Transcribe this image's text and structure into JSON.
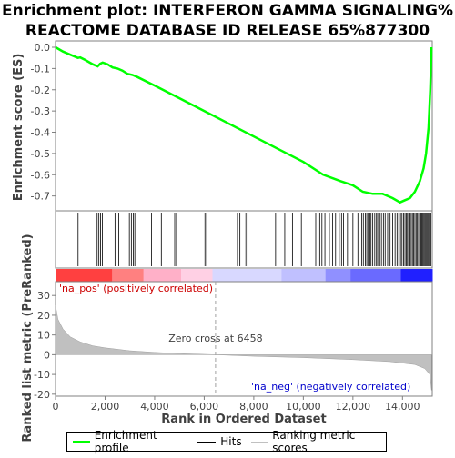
{
  "chart_data": {
    "type": "line",
    "title_line1": "Enrichment plot: INTERFERON GAMMA SIGNALING%",
    "title_line2": "REACTOME DATABASE ID RELEASE 65%877300",
    "es_panel": {
      "ylabel": "Enrichment score (ES)",
      "ylim": [
        -0.77,
        0.03
      ],
      "yticks": [
        "0.0",
        "-0.1",
        "-0.2",
        "-0.3",
        "-0.4",
        "-0.5",
        "-0.6",
        "-0.7"
      ],
      "ytick_values": [
        0.0,
        -0.1,
        -0.2,
        -0.3,
        -0.4,
        -0.5,
        -0.6,
        -0.7
      ],
      "line_color": "#00ff00",
      "points": [
        [
          0,
          0
        ],
        [
          300,
          -0.02
        ],
        [
          600,
          -0.035
        ],
        [
          900,
          -0.05
        ],
        [
          1000,
          -0.048
        ],
        [
          1200,
          -0.06
        ],
        [
          1500,
          -0.08
        ],
        [
          1700,
          -0.09
        ],
        [
          1800,
          -0.078
        ],
        [
          1900,
          -0.072
        ],
        [
          2100,
          -0.08
        ],
        [
          2300,
          -0.095
        ],
        [
          2500,
          -0.1
        ],
        [
          2700,
          -0.11
        ],
        [
          2900,
          -0.125
        ],
        [
          3100,
          -0.13
        ],
        [
          3300,
          -0.14
        ],
        [
          4000,
          -0.18
        ],
        [
          5000,
          -0.24
        ],
        [
          6000,
          -0.3
        ],
        [
          7000,
          -0.36
        ],
        [
          8000,
          -0.42
        ],
        [
          9000,
          -0.48
        ],
        [
          10000,
          -0.54
        ],
        [
          10800,
          -0.6
        ],
        [
          11500,
          -0.63
        ],
        [
          12000,
          -0.65
        ],
        [
          12400,
          -0.68
        ],
        [
          12800,
          -0.69
        ],
        [
          13200,
          -0.69
        ],
        [
          13600,
          -0.71
        ],
        [
          13900,
          -0.73
        ],
        [
          14100,
          -0.72
        ],
        [
          14300,
          -0.71
        ],
        [
          14500,
          -0.68
        ],
        [
          14700,
          -0.63
        ],
        [
          14850,
          -0.57
        ],
        [
          14950,
          -0.5
        ],
        [
          15050,
          -0.38
        ],
        [
          15120,
          -0.2
        ],
        [
          15170,
          0.0
        ]
      ]
    },
    "hits": [
      910,
      1680,
      1750,
      1820,
      1890,
      2400,
      2550,
      2980,
      3060,
      3140,
      3200,
      3870,
      4270,
      4810,
      4880,
      6030,
      6100,
      7340,
      7440,
      7680,
      7760,
      8880,
      9250,
      9560,
      9920,
      10500,
      10660,
      10750,
      10870,
      11050,
      11180,
      11300,
      11450,
      11540,
      11620,
      11780,
      12000,
      12200,
      12350,
      12420,
      12500,
      12560,
      12620,
      12680,
      12730,
      12800,
      12880,
      12950,
      13000,
      13080,
      13150,
      13230,
      13300,
      13400,
      13500,
      13600,
      13700,
      13780,
      13850,
      13920,
      13980,
      14040,
      14100,
      14150,
      14200,
      14250,
      14300,
      14350,
      14400,
      14450,
      14500,
      14550,
      14600,
      14650,
      14700,
      14740,
      14780,
      14820,
      14860,
      14900,
      14940,
      14980,
      15020,
      15060,
      15100,
      15140
    ],
    "rank_panel": {
      "ylabel": "Ranked list metric (PreRanked)",
      "xlabel": "Rank in Ordered Dataset",
      "xlim": [
        0,
        15200
      ],
      "ylim": [
        -21,
        37
      ],
      "yticks": [
        "30",
        "20",
        "10",
        "0",
        "-10",
        "-20"
      ],
      "ytick_values": [
        30,
        20,
        10,
        0,
        -10,
        -20
      ],
      "xticks": [
        "0",
        "2,000",
        "4,000",
        "6,000",
        "8,000",
        "10,000",
        "12,000",
        "14,000"
      ],
      "xtick_values": [
        0,
        2000,
        4000,
        6000,
        8000,
        10000,
        12000,
        14000
      ],
      "zero_cross": 6458,
      "zero_cross_label": "Zero cross at 6458",
      "pos_label": "'na_pos' (positively correlated)",
      "neg_label": "'na_neg' (negatively correlated)",
      "metric_points": [
        [
          0,
          25
        ],
        [
          100,
          18
        ],
        [
          300,
          13
        ],
        [
          600,
          9
        ],
        [
          1000,
          6.5
        ],
        [
          1500,
          4.5
        ],
        [
          2000,
          3.5
        ],
        [
          3000,
          2
        ],
        [
          4000,
          1.2
        ],
        [
          5000,
          0.6
        ],
        [
          6458,
          0
        ],
        [
          8000,
          -0.8
        ],
        [
          10000,
          -1.5
        ],
        [
          12000,
          -2.5
        ],
        [
          13500,
          -3.5
        ],
        [
          14500,
          -5
        ],
        [
          14900,
          -7
        ],
        [
          15100,
          -10
        ],
        [
          15170,
          -18
        ]
      ]
    },
    "legend": {
      "items": [
        {
          "label": "Enrichment profile",
          "color": "#00ff00"
        },
        {
          "label": "Hits",
          "color": "#000000"
        },
        {
          "label": "Ranking metric scores",
          "color": "#c0c0c0"
        }
      ]
    }
  }
}
